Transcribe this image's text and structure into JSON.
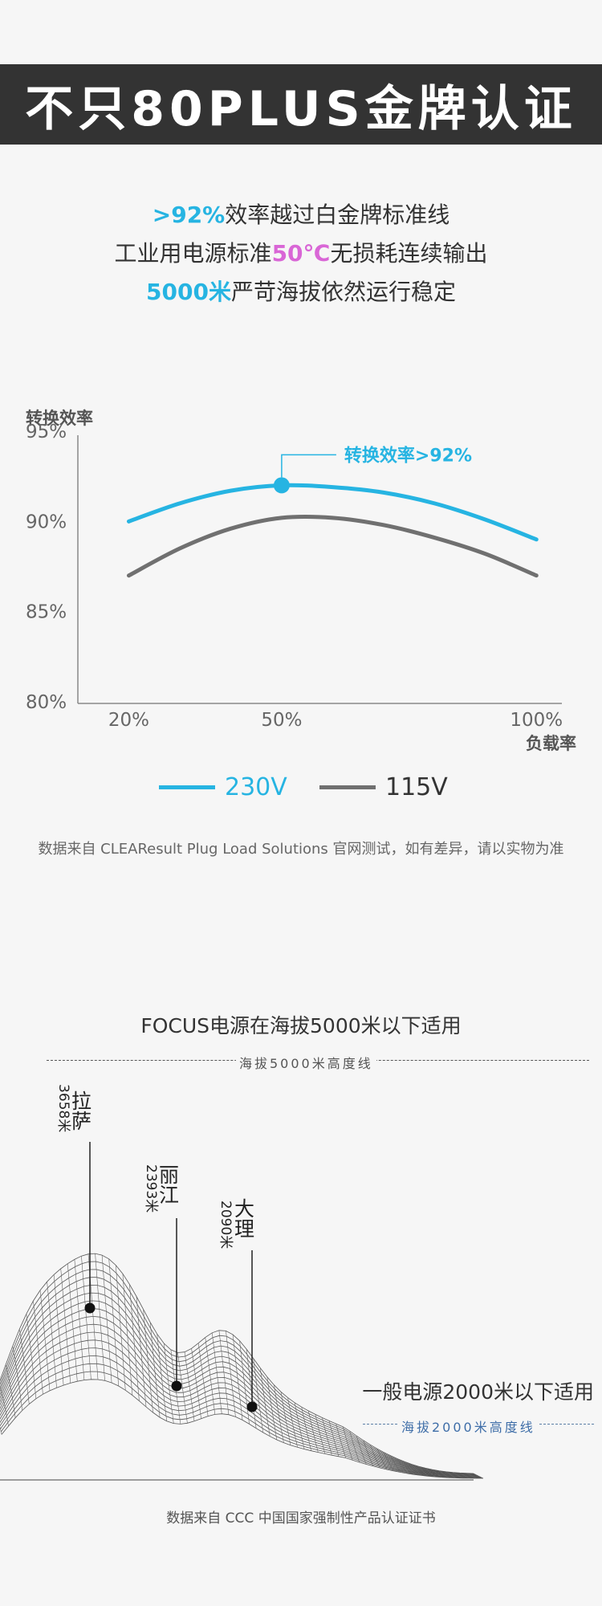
{
  "banner": {
    "title": "不只80PLUS金牌认证"
  },
  "headlines": [
    {
      "highlight": ">92%",
      "text": "效率越过白金牌标准线"
    },
    {
      "prefix": "工业用电源标准",
      "highlight": "50℃",
      "suffix": "无损耗连续输出"
    },
    {
      "highlight": "5000米",
      "text": "严苛海拔依然运行稳定"
    }
  ],
  "colors": {
    "blue": "#26b4e2",
    "gray": "#707070",
    "pink": "#d966d6",
    "banner": "#333333"
  },
  "chart_data": {
    "type": "line",
    "ylabel": "转换效率",
    "xlabel": "负载率",
    "y_ticks": [
      "95%",
      "90%",
      "85%",
      "80%"
    ],
    "x_ticks": [
      "20%",
      "50%",
      "100%"
    ],
    "ylim": [
      80,
      95
    ],
    "xlim": [
      10,
      105
    ],
    "annotation": "转换效率>92%",
    "series": [
      {
        "name": "230V",
        "color": "#26b4e2",
        "x": [
          20,
          30,
          40,
          50,
          60,
          70,
          80,
          90,
          100
        ],
        "y": [
          90.0,
          91.0,
          91.7,
          92.0,
          91.9,
          91.6,
          91.0,
          90.1,
          89.0
        ]
      },
      {
        "name": "115V",
        "color": "#707070",
        "x": [
          20,
          30,
          40,
          50,
          60,
          70,
          80,
          90,
          100
        ],
        "y": [
          87.0,
          88.5,
          89.6,
          90.2,
          90.2,
          89.8,
          89.1,
          88.2,
          87.0
        ]
      }
    ],
    "highlight_point": {
      "x": 50,
      "y": 92.0
    },
    "grid": false,
    "legend": "bottom"
  },
  "source_note_1": "数据来自 CLEAResult Plug Load Solutions 官网测试，如有差异，请以实物为准",
  "altitude": {
    "title": "FOCUS电源在海拔5000米以下适用",
    "line_5000": "海拔5000米高度线",
    "cities": [
      {
        "name": "拉萨",
        "altitude": "3658米"
      },
      {
        "name": "丽江",
        "altitude": "2393米"
      },
      {
        "name": "大理",
        "altitude": "2090米"
      }
    ],
    "general_text": "一般电源2000米以下适用",
    "line_2000": "海拔2000米高度线"
  },
  "source_note_2": "数据来自 CCC 中国国家强制性产品认证证书"
}
